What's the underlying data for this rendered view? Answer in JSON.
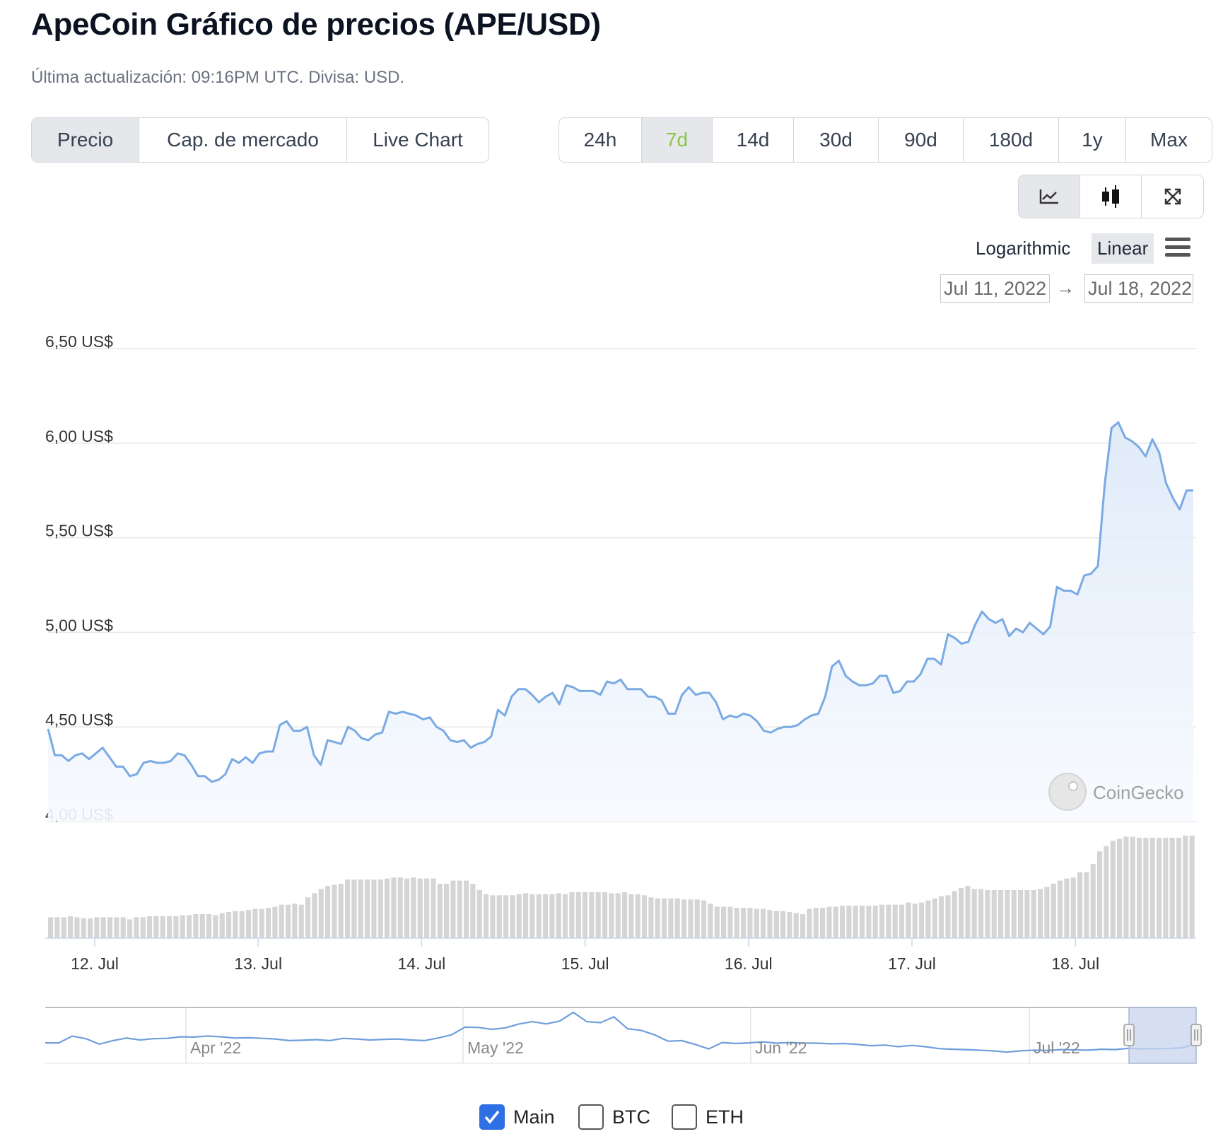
{
  "header": {
    "title": "ApeCoin Gráfico de precios (APE/USD)",
    "subtitle": "Última actualización: 09:16PM UTC. Divisa: USD."
  },
  "type_tabs": [
    {
      "label": "Precio",
      "active": true
    },
    {
      "label": "Cap. de mercado",
      "active": false
    },
    {
      "label": "Live Chart",
      "active": false
    }
  ],
  "range_tabs": [
    {
      "label": "24h",
      "active": false
    },
    {
      "label": "7d",
      "active": true
    },
    {
      "label": "14d",
      "active": false
    },
    {
      "label": "30d",
      "active": false
    },
    {
      "label": "90d",
      "active": false
    },
    {
      "label": "180d",
      "active": false
    },
    {
      "label": "1y",
      "active": false
    },
    {
      "label": "Max",
      "active": false
    }
  ],
  "view_tools": {
    "line_icon": "line-chart-icon",
    "candle_icon": "candlestick-icon",
    "expand_icon": "fullscreen-icon",
    "active": "line"
  },
  "scale": {
    "log_label": "Logarithmic",
    "linear_label": "Linear",
    "active": "Linear"
  },
  "date_range": {
    "from": "Jul 11, 2022",
    "to": "Jul 18, 2022",
    "arrow": "→"
  },
  "watermark": "CoinGecko",
  "legend": [
    {
      "label": "Main",
      "checked": true
    },
    {
      "label": "BTC",
      "checked": false
    },
    {
      "label": "ETH",
      "checked": false
    }
  ],
  "colors": {
    "line": "#7aaae4",
    "fill": "#eef4fc",
    "volume": "#d5d5d5",
    "accent": "#8dc647",
    "checkbox": "#2f6fe4"
  },
  "chart_data": {
    "type": "line",
    "ylim": [
      4.0,
      6.5
    ],
    "y_ticks": [
      "6,50 US$",
      "6,00 US$",
      "5,50 US$",
      "5,00 US$",
      "4,50 US$",
      "4,00 US$"
    ],
    "x_ticks": [
      "12. Jul",
      "13. Jul",
      "14. Jul",
      "15. Jul",
      "16. Jul",
      "17. Jul",
      "18. Jul"
    ],
    "price": [
      4.49,
      4.35,
      4.35,
      4.32,
      4.35,
      4.36,
      4.33,
      4.36,
      4.39,
      4.34,
      4.29,
      4.29,
      4.24,
      4.25,
      4.31,
      4.32,
      4.31,
      4.31,
      4.32,
      4.36,
      4.35,
      4.3,
      4.24,
      4.24,
      4.21,
      4.22,
      4.25,
      4.33,
      4.31,
      4.34,
      4.31,
      4.36,
      4.37,
      4.37,
      4.51,
      4.53,
      4.48,
      4.48,
      4.5,
      4.35,
      4.3,
      4.43,
      4.42,
      4.41,
      4.5,
      4.48,
      4.44,
      4.43,
      4.46,
      4.47,
      4.58,
      4.57,
      4.58,
      4.57,
      4.56,
      4.54,
      4.55,
      4.5,
      4.48,
      4.43,
      4.42,
      4.43,
      4.39,
      4.41,
      4.42,
      4.45,
      4.59,
      4.56,
      4.66,
      4.7,
      4.7,
      4.67,
      4.63,
      4.66,
      4.68,
      4.62,
      4.72,
      4.71,
      4.69,
      4.69,
      4.69,
      4.67,
      4.74,
      4.73,
      4.75,
      4.7,
      4.7,
      4.7,
      4.66,
      4.66,
      4.64,
      4.57,
      4.57,
      4.67,
      4.71,
      4.67,
      4.68,
      4.68,
      4.63,
      4.54,
      4.56,
      4.55,
      4.57,
      4.56,
      4.53,
      4.48,
      4.47,
      4.49,
      4.5,
      4.5,
      4.51,
      4.54,
      4.56,
      4.57,
      4.66,
      4.82,
      4.85,
      4.77,
      4.74,
      4.72,
      4.72,
      4.73,
      4.77,
      4.77,
      4.68,
      4.69,
      4.74,
      4.74,
      4.78,
      4.86,
      4.86,
      4.83,
      4.99,
      4.97,
      4.94,
      4.95,
      5.04,
      5.11,
      5.07,
      5.05,
      5.07,
      4.98,
      5.02,
      5.0,
      5.05,
      5.02,
      4.99,
      5.03,
      5.24,
      5.22,
      5.22,
      5.2,
      5.3,
      5.31,
      5.35,
      5.78,
      6.08,
      6.11,
      6.03,
      6.01,
      5.98,
      5.93,
      6.02,
      5.95,
      5.79,
      5.71,
      5.65,
      5.75,
      5.75
    ],
    "volume": [
      0.2,
      0.2,
      0.2,
      0.21,
      0.2,
      0.19,
      0.19,
      0.2,
      0.2,
      0.2,
      0.2,
      0.2,
      0.18,
      0.2,
      0.2,
      0.21,
      0.21,
      0.21,
      0.21,
      0.21,
      0.22,
      0.22,
      0.23,
      0.23,
      0.23,
      0.22,
      0.24,
      0.25,
      0.26,
      0.26,
      0.27,
      0.28,
      0.28,
      0.29,
      0.3,
      0.32,
      0.32,
      0.33,
      0.32,
      0.39,
      0.43,
      0.47,
      0.5,
      0.51,
      0.52,
      0.56,
      0.56,
      0.56,
      0.56,
      0.56,
      0.56,
      0.57,
      0.58,
      0.58,
      0.57,
      0.58,
      0.57,
      0.57,
      0.57,
      0.52,
      0.52,
      0.55,
      0.55,
      0.55,
      0.52,
      0.46,
      0.42,
      0.41,
      0.41,
      0.41,
      0.41,
      0.42,
      0.43,
      0.42,
      0.42,
      0.42,
      0.42,
      0.43,
      0.42,
      0.44,
      0.44,
      0.44,
      0.44,
      0.44,
      0.44,
      0.43,
      0.43,
      0.44,
      0.42,
      0.42,
      0.41,
      0.39,
      0.38,
      0.38,
      0.38,
      0.38,
      0.37,
      0.37,
      0.37,
      0.36,
      0.33,
      0.3,
      0.3,
      0.3,
      0.29,
      0.29,
      0.29,
      0.28,
      0.28,
      0.27,
      0.26,
      0.26,
      0.25,
      0.24,
      0.23,
      0.28,
      0.29,
      0.29,
      0.3,
      0.3,
      0.31,
      0.31,
      0.31,
      0.31,
      0.31,
      0.31,
      0.32,
      0.32,
      0.32,
      0.32,
      0.34,
      0.33,
      0.34,
      0.36,
      0.38,
      0.4,
      0.41,
      0.45,
      0.48,
      0.5,
      0.47,
      0.47,
      0.46,
      0.46,
      0.46,
      0.46,
      0.46,
      0.46,
      0.46,
      0.46,
      0.47,
      0.49,
      0.52,
      0.55,
      0.57,
      0.58,
      0.63,
      0.63,
      0.71,
      0.83,
      0.88,
      0.93,
      0.95,
      0.97,
      0.97,
      0.96,
      0.96,
      0.96,
      0.96,
      0.96,
      0.96,
      0.96,
      0.98,
      0.98
    ],
    "navigator": {
      "x_ticks": [
        "Apr '22",
        "May '22",
        "Jun '22",
        "Jul '22"
      ],
      "price": [
        5.5,
        5.5,
        7.6,
        6.8,
        5.1,
        6.2,
        7.0,
        6.4,
        6.8,
        6.9,
        7.4,
        7.3,
        7.6,
        7.4,
        7.0,
        7.1,
        6.9,
        6.7,
        6.2,
        6.3,
        6.5,
        6.2,
        6.9,
        6.7,
        6.4,
        6.6,
        6.7,
        6.4,
        6.2,
        7.0,
        8.0,
        10.4,
        10.3,
        9.7,
        10.2,
        11.4,
        12.1,
        11.4,
        12.3,
        15.0,
        12.1,
        11.8,
        13.6,
        9.9,
        9.4,
        8.0,
        6.0,
        6.2,
        5.0,
        3.6,
        5.6,
        5.3,
        5.5,
        5.8,
        5.4,
        5.6,
        5.4,
        5.4,
        5.2,
        5.3,
        5.0,
        4.6,
        4.8,
        4.3,
        4.7,
        4.3,
        3.7,
        3.5,
        3.4,
        3.2,
        3.0,
        2.6,
        3.0,
        3.2,
        3.1,
        3.4,
        3.3,
        3.2,
        3.5,
        3.4,
        3.8,
        3.6,
        3.7,
        3.7,
        4.0,
        5.2
      ]
    }
  }
}
